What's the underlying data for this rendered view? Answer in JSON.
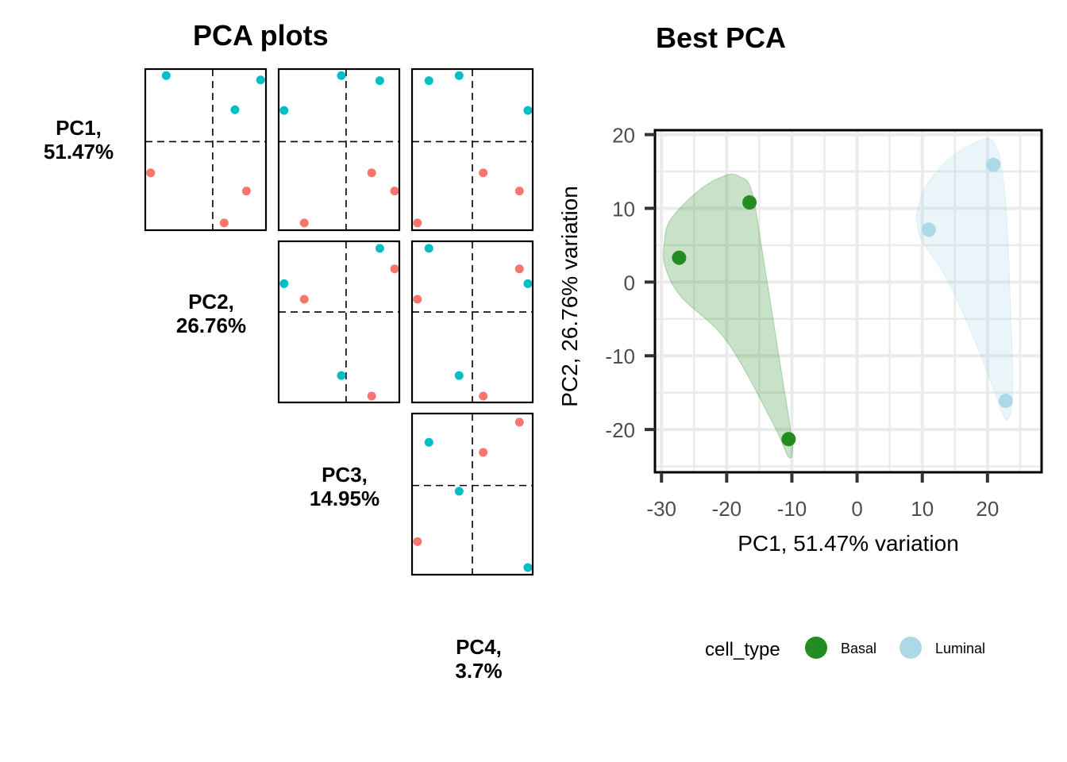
{
  "left_title": "PCA plots",
  "right_title": "Best PCA",
  "pairs_labels": [
    {
      "line1": "PC1,",
      "line2": "51.47%"
    },
    {
      "line1": "PC2,",
      "line2": "26.76%"
    },
    {
      "line1": "PC3,",
      "line2": "14.95%"
    },
    {
      "line1": "PC4,",
      "line2": "3.7%"
    }
  ],
  "colors": {
    "basal_pairs": "#F8766D",
    "luminal_pairs": "#00BFC4",
    "basal": "#228B22",
    "luminal": "#ADD8E6",
    "grid": "#EBEBEB",
    "axis": "#000000"
  },
  "chart_data": [
    {
      "type": "scatter",
      "title": "PCA plots",
      "kind": "pairs",
      "panels": [
        {
          "row": 1,
          "col": 1,
          "x_pc": "PC2",
          "y_pc": "PC1",
          "xlim": [
            -1,
            0.79
          ],
          "ylim": [
            -1.22,
            1
          ],
          "points": [
            {
              "group": "luminal",
              "x": -0.69,
              "y": 0.91
            },
            {
              "group": "luminal",
              "x": 0.71,
              "y": 0.85
            },
            {
              "group": "luminal",
              "x": 0.33,
              "y": 0.44
            },
            {
              "group": "basal",
              "x": -0.92,
              "y": -0.43
            },
            {
              "group": "basal",
              "x": 0.5,
              "y": -0.68
            },
            {
              "group": "basal",
              "x": 0.17,
              "y": -1.12
            }
          ]
        },
        {
          "row": 1,
          "col": 2,
          "x_pc": "PC3",
          "y_pc": "PC1",
          "xlim": [
            -1,
            0.79
          ],
          "ylim": [
            -1.22,
            1
          ],
          "points": [
            {
              "group": "luminal",
              "x": -0.07,
              "y": 0.91
            },
            {
              "group": "luminal",
              "x": 0.5,
              "y": 0.84
            },
            {
              "group": "luminal",
              "x": -0.92,
              "y": 0.43
            },
            {
              "group": "basal",
              "x": 0.38,
              "y": -0.43
            },
            {
              "group": "basal",
              "x": 0.72,
              "y": -0.68
            },
            {
              "group": "basal",
              "x": -0.62,
              "y": -1.12
            }
          ]
        },
        {
          "row": 1,
          "col": 3,
          "x_pc": "PC4",
          "y_pc": "PC1",
          "xlim": [
            -1,
            1
          ],
          "ylim": [
            -1.22,
            1
          ],
          "points": [
            {
              "group": "luminal",
              "x": -0.72,
              "y": 0.84
            },
            {
              "group": "luminal",
              "x": -0.22,
              "y": 0.91
            },
            {
              "group": "luminal",
              "x": 0.92,
              "y": 0.43
            },
            {
              "group": "basal",
              "x": 0.18,
              "y": -0.43
            },
            {
              "group": "basal",
              "x": 0.78,
              "y": -0.68
            },
            {
              "group": "basal",
              "x": -0.91,
              "y": -1.12
            }
          ]
        },
        {
          "row": 2,
          "col": 2,
          "x_pc": "PC3",
          "y_pc": "PC2",
          "xlim": [
            -1,
            0.79
          ],
          "ylim": [
            -1.28,
            1
          ],
          "points": [
            {
              "group": "luminal",
              "x": 0.5,
              "y": 0.9
            },
            {
              "group": "luminal",
              "x": -0.92,
              "y": 0.4
            },
            {
              "group": "luminal",
              "x": -0.07,
              "y": -0.9
            },
            {
              "group": "basal",
              "x": 0.72,
              "y": 0.61
            },
            {
              "group": "basal",
              "x": -0.62,
              "y": 0.18
            },
            {
              "group": "basal",
              "x": 0.38,
              "y": -1.19
            }
          ]
        },
        {
          "row": 2,
          "col": 3,
          "x_pc": "PC4",
          "y_pc": "PC2",
          "xlim": [
            -1,
            1
          ],
          "ylim": [
            -1.28,
            1
          ],
          "points": [
            {
              "group": "luminal",
              "x": -0.72,
              "y": 0.9
            },
            {
              "group": "luminal",
              "x": 0.92,
              "y": 0.4
            },
            {
              "group": "luminal",
              "x": -0.22,
              "y": -0.9
            },
            {
              "group": "basal",
              "x": 0.78,
              "y": 0.61
            },
            {
              "group": "basal",
              "x": -0.91,
              "y": 0.18
            },
            {
              "group": "basal",
              "x": 0.18,
              "y": -1.19
            }
          ]
        },
        {
          "row": 3,
          "col": 3,
          "x_pc": "PC4",
          "y_pc": "PC3",
          "xlim": [
            -1,
            1
          ],
          "ylim": [
            -1.24,
            1
          ],
          "points": [
            {
              "group": "luminal",
              "x": -0.72,
              "y": 0.6
            },
            {
              "group": "luminal",
              "x": -0.22,
              "y": -0.08
            },
            {
              "group": "luminal",
              "x": 0.92,
              "y": -1.14
            },
            {
              "group": "basal",
              "x": 0.78,
              "y": 0.88
            },
            {
              "group": "basal",
              "x": 0.18,
              "y": 0.46
            },
            {
              "group": "basal",
              "x": -0.91,
              "y": -0.78
            }
          ]
        }
      ]
    },
    {
      "type": "scatter",
      "title": "Best PCA",
      "xlabel": "PC1, 51.47% variation",
      "ylabel": "PC2, 26.76% variation",
      "xlim": [
        -31,
        28.3
      ],
      "ylim": [
        -25.8,
        20.6
      ],
      "xticks": [
        -30,
        -20,
        -10,
        0,
        10,
        20
      ],
      "xtick_labels": [
        "-30",
        "-20",
        "-10",
        "0",
        "10",
        "20"
      ],
      "yticks": [
        20,
        10,
        0,
        -10,
        -20
      ],
      "ytick_labels": [
        "20",
        "10",
        "0",
        "-10",
        "-20"
      ],
      "grid": true,
      "legend_title": "cell_type",
      "legend_position": "bottom",
      "series": [
        {
          "name": "Basal",
          "key": "basal",
          "points": [
            [
              -27.3,
              3.3
            ],
            [
              -16.5,
              10.8
            ],
            [
              -10.5,
              -21.3
            ]
          ],
          "hull": [
            [
              -29.6,
              5
            ],
            [
              -28.6,
              8.5
            ],
            [
              -24,
              12.6
            ],
            [
              -20,
              14.5
            ],
            [
              -18,
              14.3
            ],
            [
              -16.2,
              12.5
            ],
            [
              -14.5,
              4
            ],
            [
              -12,
              -10
            ],
            [
              -10.2,
              -20
            ],
            [
              -9.9,
              -23
            ],
            [
              -10.6,
              -23.6
            ],
            [
              -13,
              -19
            ],
            [
              -20,
              -8
            ],
            [
              -27,
              -2
            ],
            [
              -29.4,
              2
            ]
          ]
        },
        {
          "name": "Luminal",
          "key": "luminal",
          "points": [
            [
              11.0,
              7.1
            ],
            [
              20.9,
              15.9
            ],
            [
              22.8,
              -16.1
            ]
          ],
          "hull": [
            [
              9.2,
              9.5
            ],
            [
              10.5,
              13
            ],
            [
              14.5,
              17
            ],
            [
              19.5,
              19.4
            ],
            [
              21.2,
              18.6
            ],
            [
              22.2,
              15.5
            ],
            [
              23.0,
              8
            ],
            [
              23.6,
              -5
            ],
            [
              23.9,
              -14
            ],
            [
              23.4,
              -18.2
            ],
            [
              22.3,
              -17.8
            ],
            [
              19,
              -10
            ],
            [
              14,
              0
            ],
            [
              10,
              5.5
            ],
            [
              9.2,
              8
            ]
          ]
        }
      ]
    }
  ]
}
